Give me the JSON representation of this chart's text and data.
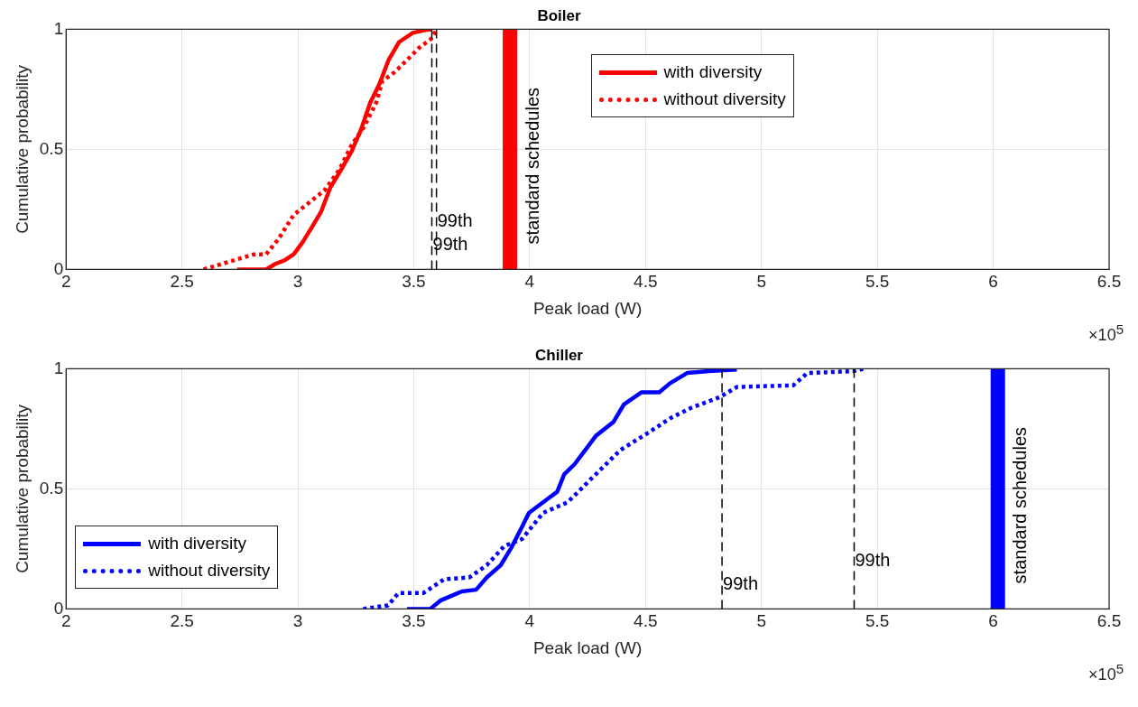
{
  "chart_data": [
    {
      "type": "line",
      "title": "Boiler",
      "xlabel": "Peak load (W)",
      "ylabel": "Cumulative probability",
      "xlim": [
        2,
        6.5
      ],
      "xticks": [
        2,
        2.5,
        3,
        3.5,
        4,
        4.5,
        5,
        5.5,
        6,
        6.5
      ],
      "ylim": [
        0,
        1
      ],
      "yticks": [
        0,
        0.5,
        1
      ],
      "grid": true,
      "legend": "top right",
      "marker": "none",
      "series": [
        {
          "name": "with diversity",
          "color": "#ff0000",
          "line_style": "solid",
          "x": [
            2.738,
            2.863,
            2.903,
            2.942,
            2.982,
            3.021,
            3.061,
            3.1,
            3.14,
            3.18,
            3.232,
            3.272,
            3.312,
            3.351,
            3.391,
            3.437,
            3.496,
            3.549,
            3.575
          ],
          "values": [
            0,
            0,
            0.023,
            0.038,
            0.063,
            0.114,
            0.177,
            0.24,
            0.341,
            0.404,
            0.492,
            0.581,
            0.694,
            0.77,
            0.871,
            0.947,
            0.985,
            0.997,
            1
          ]
        },
        {
          "name": "without diversity",
          "color": "#ff0000",
          "line_style": "dotted",
          "x": [
            2.593,
            2.679,
            2.811,
            2.863,
            2.916,
            2.982,
            3.048,
            3.114,
            3.18,
            3.232,
            3.285,
            3.338,
            3.364,
            3.417,
            3.47,
            3.522,
            3.575,
            3.595
          ],
          "values": [
            0,
            0.025,
            0.063,
            0.063,
            0.126,
            0.227,
            0.278,
            0.328,
            0.417,
            0.518,
            0.593,
            0.694,
            0.783,
            0.821,
            0.871,
            0.922,
            0.96,
            0.992
          ]
        }
      ],
      "ref_lines": [
        {
          "axis": "x",
          "value": 3.578,
          "label": "99th",
          "color": "#000000",
          "line_style": "dashed"
        },
        {
          "axis": "x",
          "value": 3.598,
          "label": "99th",
          "color": "#000000",
          "line_style": "dashed"
        },
        {
          "axis": "x",
          "value": 3.915,
          "label": "standard schedules",
          "color": "#ff0000",
          "line_style": "solid"
        }
      ],
      "annotations": [
        "×10$^{5}$"
      ]
    },
    {
      "type": "line",
      "title": "Chiller",
      "xlabel": "Peak load (W)",
      "ylabel": "Cumulative probability",
      "xlim": [
        2,
        6.5
      ],
      "xticks": [
        2,
        2.5,
        3,
        3.5,
        4,
        4.5,
        5,
        5.5,
        6,
        6.5
      ],
      "ylim": [
        0,
        1
      ],
      "yticks": [
        0,
        0.5,
        1
      ],
      "grid": true,
      "legend": "bottom left",
      "marker": "none",
      "series": [
        {
          "name": "with diversity",
          "color": "#0000ff",
          "line_style": "solid",
          "x": [
            3.471,
            3.571,
            3.617,
            3.708,
            3.769,
            3.815,
            3.875,
            3.921,
            3.967,
            3.997,
            4.058,
            4.119,
            4.149,
            4.195,
            4.24,
            4.286,
            4.362,
            4.407,
            4.483,
            4.559,
            4.605,
            4.681,
            4.773,
            4.894
          ],
          "values": [
            0,
            0,
            0.036,
            0.073,
            0.08,
            0.131,
            0.182,
            0.255,
            0.342,
            0.4,
            0.444,
            0.488,
            0.56,
            0.604,
            0.662,
            0.721,
            0.779,
            0.852,
            0.902,
            0.902,
            0.939,
            0.983,
            0.99,
            0.997
          ]
        },
        {
          "name": "without diversity",
          "color": "#0000ff",
          "line_style": "dotted",
          "x": [
            3.282,
            3.389,
            3.434,
            3.541,
            3.632,
            3.739,
            3.815,
            3.891,
            3.967,
            4.058,
            4.164,
            4.27,
            4.392,
            4.514,
            4.605,
            4.696,
            4.818,
            4.894,
            5.137,
            5.198,
            5.396,
            5.442
          ],
          "values": [
            0,
            0.015,
            0.066,
            0.066,
            0.124,
            0.131,
            0.182,
            0.262,
            0.291,
            0.4,
            0.444,
            0.546,
            0.662,
            0.735,
            0.793,
            0.837,
            0.881,
            0.924,
            0.931,
            0.982,
            0.99,
            1
          ]
        }
      ],
      "ref_lines": [
        {
          "axis": "x",
          "value": 4.83,
          "label": "99th",
          "color": "#000000",
          "line_style": "dashed"
        },
        {
          "axis": "x",
          "value": 5.4,
          "label": "99th",
          "color": "#000000",
          "line_style": "dashed"
        },
        {
          "axis": "x",
          "value": 6.02,
          "label": "standard schedules",
          "color": "#0000ff",
          "line_style": "solid"
        }
      ],
      "annotations": [
        "×10$^{5}$"
      ]
    }
  ]
}
